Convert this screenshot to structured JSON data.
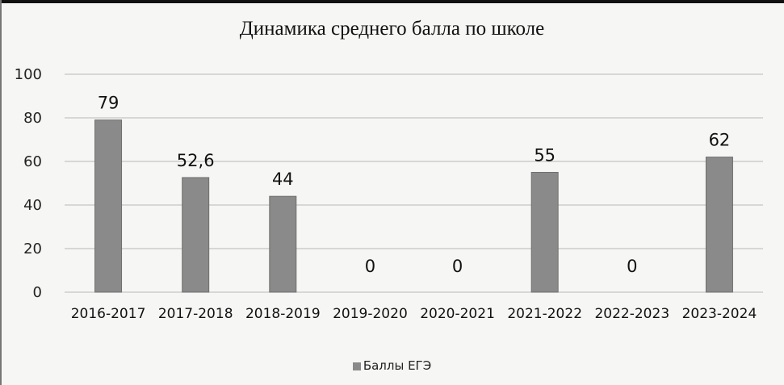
{
  "chart_data": {
    "type": "bar",
    "title": "Динамика среднего балла по школе",
    "categories": [
      "2016-2017",
      "2017-2018",
      "2018-2019",
      "2019-2020",
      "2020-2021",
      "2021-2022",
      "2022-2023",
      "2023-2024"
    ],
    "series": [
      {
        "name": "Баллы  ЕГЭ",
        "values": [
          79,
          52.6,
          44,
          0,
          0,
          55,
          0,
          62
        ]
      }
    ],
    "data_labels": [
      "79",
      "52,6",
      "44",
      "0",
      "0",
      "55",
      "0",
      "62"
    ],
    "ylim": [
      0,
      100
    ],
    "yticks": [
      "0",
      "20",
      "40",
      "60",
      "80",
      "100"
    ],
    "grid": true,
    "legend_position": "bottom",
    "colors": {
      "bar": "#8a8a8a",
      "grid": "#b8b8b8",
      "text": "#111111"
    }
  }
}
